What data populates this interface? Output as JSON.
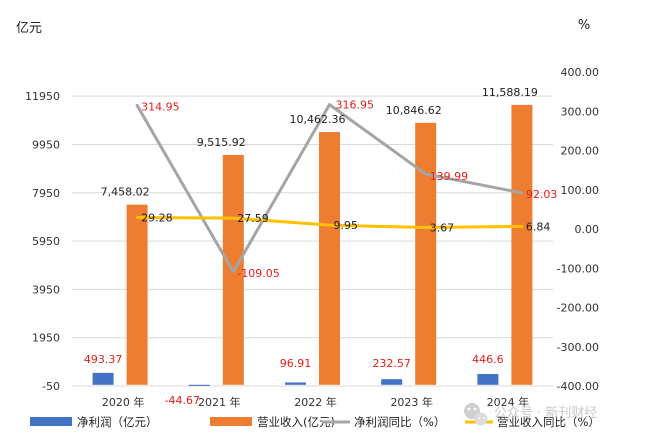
{
  "chart_data": {
    "type": "bar",
    "categories": [
      "2020 年",
      "2021 年",
      "2022 年",
      "2023 年",
      "2024 年"
    ],
    "series": [
      {
        "name": "净利润（亿元）",
        "kind": "bar",
        "axis": "left",
        "color": "#4472c4",
        "values": [
          493.37,
          -44.67,
          96.91,
          232.57,
          446.6
        ],
        "labels": [
          "493.37",
          "-44.67",
          "96.91",
          "232.57",
          "446.6"
        ],
        "label_color": "#e0201b"
      },
      {
        "name": "营业收入(亿元)",
        "kind": "bar",
        "axis": "left",
        "color": "#ed7d31",
        "values": [
          7458.02,
          9515.92,
          10462.36,
          10846.62,
          11588.19
        ],
        "labels": [
          "7,458.02",
          "9,515.92",
          "10,462.36",
          "10,846.62",
          "11,588.19"
        ],
        "label_color": "#222222"
      },
      {
        "name": "净利润同比（%）",
        "kind": "line",
        "axis": "right",
        "color": "#a5a5a5",
        "values": [
          314.95,
          -109.05,
          316.95,
          139.99,
          92.03
        ],
        "labels": [
          "314.95",
          "-109.05",
          "316.95",
          "139.99",
          "92.03"
        ],
        "label_color": "#e0201b"
      },
      {
        "name": "营业收入同比（%）",
        "kind": "line",
        "axis": "right",
        "color": "#ffc000",
        "values": [
          29.28,
          27.59,
          9.95,
          3.67,
          6.84
        ],
        "labels": [
          "29.28",
          "27.59",
          "9.95",
          "3.67",
          "6.84"
        ],
        "label_color": "#222222"
      }
    ],
    "left_axis": {
      "unit": "亿元",
      "ylim": [
        -50,
        12950
      ],
      "ticks": [
        -50,
        1950,
        3950,
        5950,
        7950,
        9950,
        11950
      ],
      "tick_labels": [
        "-50",
        "1950",
        "3950",
        "5950",
        "7950",
        "9950",
        "11950"
      ]
    },
    "right_axis": {
      "unit": "%",
      "ylim": [
        -400,
        400
      ],
      "ticks": [
        -400,
        -300,
        -200,
        -100,
        0,
        100,
        200,
        300,
        400
      ],
      "tick_labels": [
        "-400.00",
        "-300.00",
        "-200.00",
        "-100.00",
        "0.00",
        "100.00",
        "200.00",
        "300.00",
        "400.00"
      ]
    },
    "legend_position": "bottom"
  },
  "watermark": {
    "icon": "wechat-icon",
    "text": "公众号 · 新刊财经"
  }
}
